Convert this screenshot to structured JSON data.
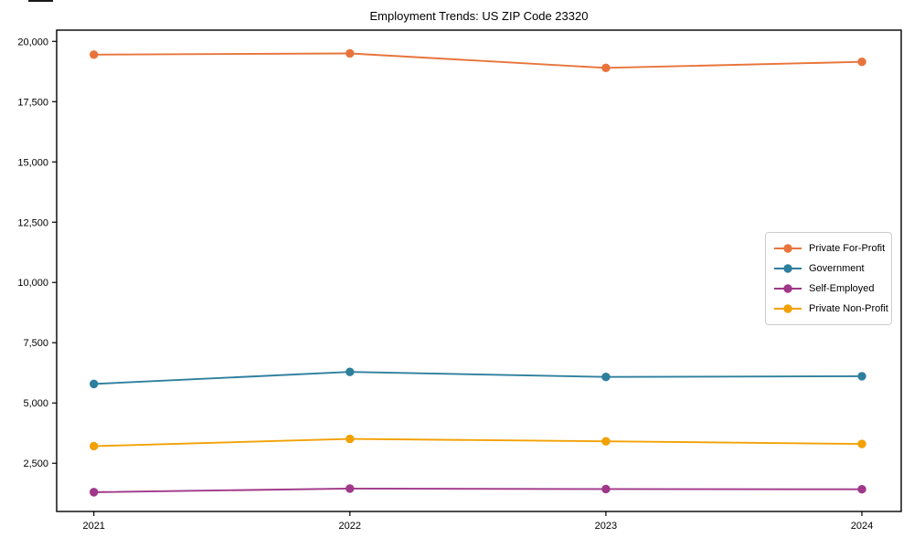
{
  "chart_data": {
    "type": "line",
    "title": "Employment Trends: US ZIP Code 23320",
    "x": [
      "2021",
      "2022",
      "2023",
      "2024"
    ],
    "series": [
      {
        "name": "Private For-Profit",
        "color": "#E8743B",
        "values": [
          19450,
          19500,
          18900,
          19150
        ]
      },
      {
        "name": "Government",
        "color": "#2E7F9E",
        "values": [
          5790,
          6290,
          6080,
          6110
        ]
      },
      {
        "name": "Self-Employed",
        "color": "#A03788",
        "values": [
          1300,
          1450,
          1430,
          1420
        ]
      },
      {
        "name": "Private Non-Profit",
        "color": "#F2A104",
        "values": [
          3210,
          3510,
          3410,
          3300
        ]
      }
    ],
    "xlabel": "",
    "ylabel": "",
    "ylim": [
      500,
      20466
    ],
    "yticks": [
      2500,
      5000,
      7500,
      10000,
      12500,
      15000,
      17500,
      20000
    ],
    "grid": false,
    "legend_position": "center right",
    "marker": "circle",
    "axis_color": "#000000",
    "tick_label_color": "#000000"
  }
}
